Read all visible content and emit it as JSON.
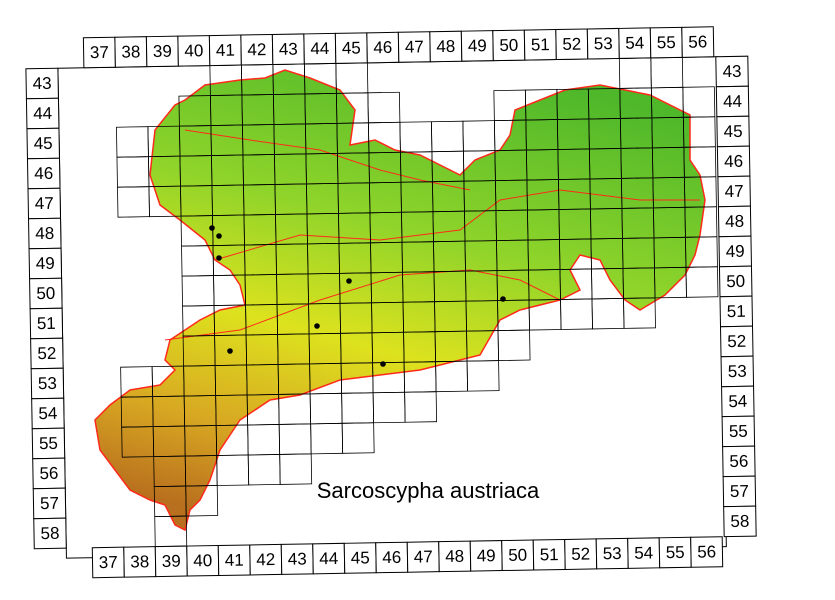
{
  "title": "Sarcoscypha austriaca",
  "columns": [
    37,
    38,
    39,
    40,
    41,
    42,
    43,
    44,
    45,
    46,
    47,
    48,
    49,
    50,
    51,
    52,
    53,
    54,
    55,
    56
  ],
  "rows": [
    43,
    44,
    45,
    46,
    47,
    48,
    49,
    50,
    51,
    52,
    53,
    54,
    55,
    56,
    57,
    58
  ]
}
